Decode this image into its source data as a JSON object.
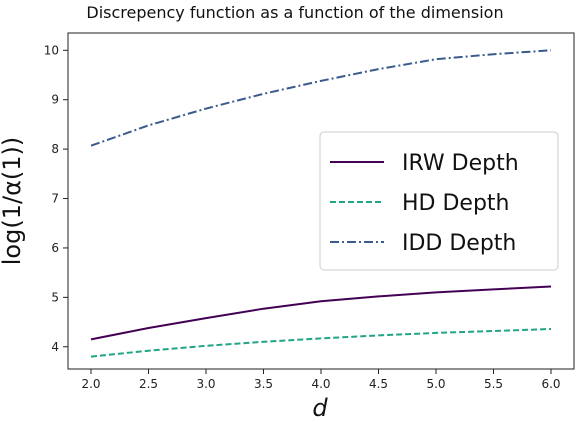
{
  "chart_data": {
    "type": "line",
    "title": "Discrepency function as a function of the dimension",
    "xlabel": "d",
    "ylabel": "log(1/α(1))",
    "x": [
      2.0,
      2.5,
      3.0,
      3.5,
      4.0,
      4.5,
      5.0,
      5.5,
      6.0
    ],
    "xlim": [
      1.8,
      6.2
    ],
    "ylim": [
      3.55,
      10.35
    ],
    "xticks": [
      "2.0",
      "2.5",
      "3.0",
      "3.5",
      "4.0",
      "4.5",
      "5.0",
      "5.5",
      "6.0"
    ],
    "yticks": [
      "4",
      "5",
      "6",
      "7",
      "8",
      "9",
      "10"
    ],
    "grid": false,
    "legend_position": "right",
    "series": [
      {
        "name": "IRW Depth",
        "color": "#440154",
        "dash": "solid",
        "values": [
          4.15,
          4.38,
          4.58,
          4.77,
          4.92,
          5.02,
          5.1,
          5.16,
          5.22
        ]
      },
      {
        "name": "HD Depth",
        "color": "#21a585",
        "dash": "dashed",
        "values": [
          3.8,
          3.92,
          4.02,
          4.1,
          4.17,
          4.23,
          4.28,
          4.32,
          4.36
        ]
      },
      {
        "name": "IDD Depth",
        "color": "#3b5b8c",
        "dash": "dashdot",
        "values": [
          8.07,
          8.48,
          8.82,
          9.12,
          9.38,
          9.62,
          9.82,
          9.92,
          10.0
        ]
      }
    ]
  }
}
